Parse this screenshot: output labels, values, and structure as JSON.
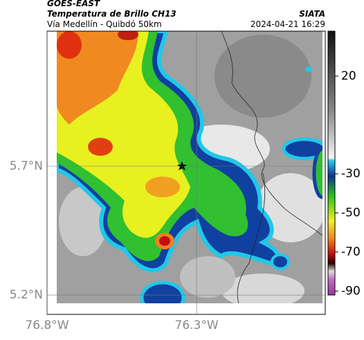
{
  "header": {
    "title": "GOES-EAST",
    "subtitle": "Temperatura de Brillo CH13",
    "location": "Vía Medellín - Quibdó 50km",
    "source": "SIATA",
    "datetime": "2024-04-21 16:29"
  },
  "map": {
    "xlim": [
      -76.8,
      -75.87
    ],
    "ylim": [
      5.125,
      6.224
    ],
    "xticks": [
      {
        "value": -76.8,
        "label": "76.8°W"
      },
      {
        "value": -76.3,
        "label": "76.3°W"
      }
    ],
    "yticks": [
      {
        "value": 5.7,
        "label": "5.7°N"
      },
      {
        "value": 5.2,
        "label": "5.2°N"
      }
    ],
    "grid": true
  },
  "colorbar": {
    "clim": [
      -92,
      43
    ],
    "ticks": [
      20,
      -30,
      -50,
      -70,
      -90
    ]
  }
}
